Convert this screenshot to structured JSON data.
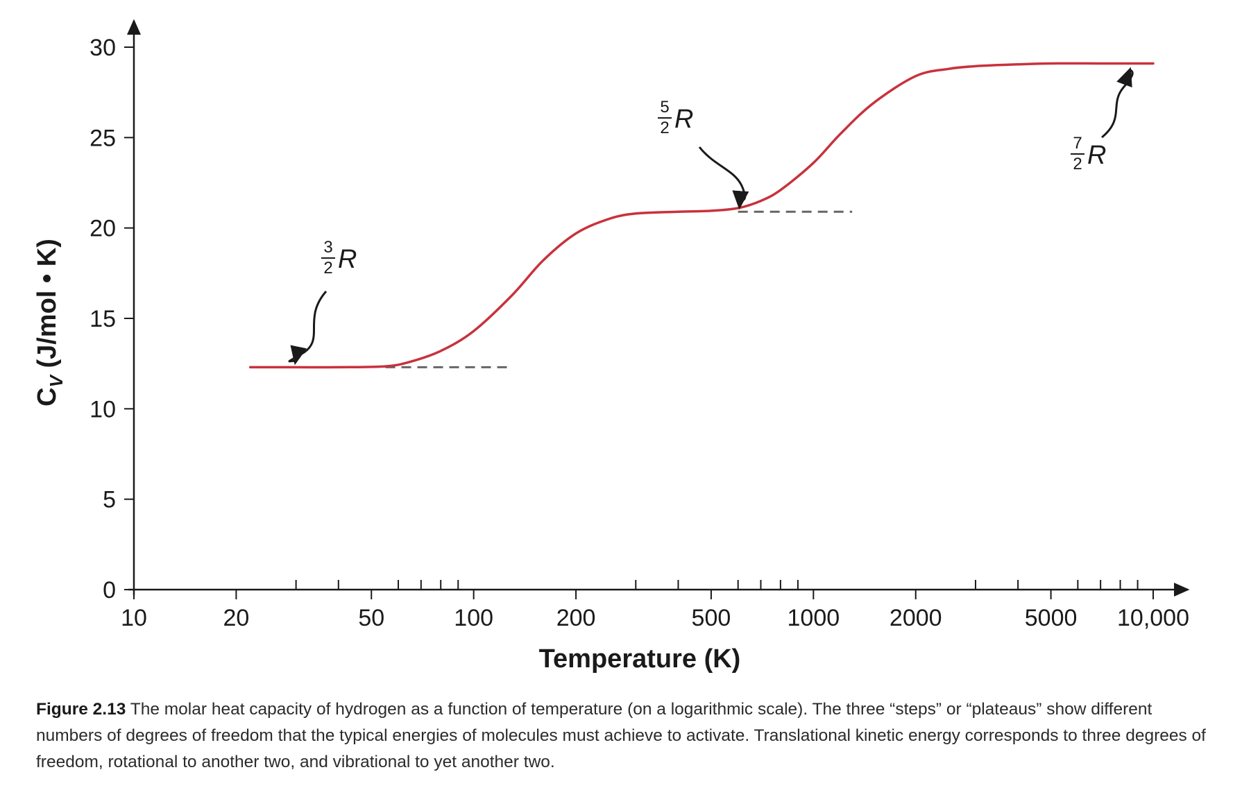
{
  "chart_data": {
    "type": "line",
    "x_scale": "log",
    "xlabel": "Temperature (K)",
    "ylabel_main": "C",
    "ylabel_sub": "V",
    "ylabel_rest": " (J/mol • K)",
    "xlim": [
      10,
      10000
    ],
    "ylim": [
      0,
      30
    ],
    "x_ticks_labeled": [
      {
        "value": 10,
        "label": "10"
      },
      {
        "value": 20,
        "label": "20"
      },
      {
        "value": 50,
        "label": "50"
      },
      {
        "value": 100,
        "label": "100"
      },
      {
        "value": 200,
        "label": "200"
      },
      {
        "value": 500,
        "label": "500"
      },
      {
        "value": 1000,
        "label": "1000"
      },
      {
        "value": 2000,
        "label": "2000"
      },
      {
        "value": 5000,
        "label": "5000"
      },
      {
        "value": 10000,
        "label": "10,000"
      }
    ],
    "x_ticks_minor": [
      30,
      40,
      60,
      70,
      80,
      90,
      300,
      400,
      600,
      700,
      800,
      900,
      3000,
      4000,
      6000,
      7000,
      8000,
      9000
    ],
    "y_ticks": [
      {
        "value": 0,
        "label": "0"
      },
      {
        "value": 5,
        "label": "5"
      },
      {
        "value": 10,
        "label": "10"
      },
      {
        "value": 15,
        "label": "15"
      },
      {
        "value": 20,
        "label": "20"
      },
      {
        "value": 25,
        "label": "25"
      },
      {
        "value": 30,
        "label": "30"
      }
    ],
    "series": [
      {
        "color": "#c8323c",
        "x": [
          22,
          30,
          40,
          55,
          65,
          80,
          100,
          130,
          160,
          200,
          250,
          300,
          400,
          500,
          600,
          700,
          800,
          1000,
          1200,
          1500,
          2000,
          2500,
          3000,
          4000,
          5000,
          7000,
          10000
        ],
        "y": [
          12.3,
          12.3,
          12.3,
          12.35,
          12.6,
          13.2,
          14.3,
          16.3,
          18.2,
          19.7,
          20.5,
          20.8,
          20.9,
          20.95,
          21.1,
          21.5,
          22.1,
          23.6,
          25.2,
          26.9,
          28.4,
          28.8,
          28.95,
          29.05,
          29.1,
          29.1,
          29.1
        ]
      }
    ],
    "reference_lines": [
      {
        "y": 12.3,
        "x_from": 55,
        "x_to": 130,
        "style": "dashed",
        "color": "#666666"
      },
      {
        "y": 20.9,
        "x_from": 600,
        "x_to": 1300,
        "style": "dashed",
        "color": "#666666"
      }
    ],
    "annotations": [
      {
        "numerator": "3",
        "denominator": "2",
        "symbol": "R",
        "points_to": {
          "x": 29,
          "y": 12.3
        }
      },
      {
        "numerator": "5",
        "denominator": "2",
        "symbol": "R",
        "points_to": {
          "x": 600,
          "y": 20.9
        }
      },
      {
        "numerator": "7",
        "denominator": "2",
        "symbol": "R",
        "points_to": {
          "x": 8800,
          "y": 29.1
        }
      }
    ],
    "grid": false,
    "legend": "none"
  },
  "caption": {
    "label": "Figure 2.13",
    "text": " The molar heat capacity of hydrogen as a function of temperature (on a logarithmic scale). The three “steps” or “plateaus” show different numbers of degrees of freedom that the typical energies of molecules must achieve to activate. Translational kinetic energy corresponds to three degrees of freedom, rotational to another two, and vibrational to yet another two."
  }
}
